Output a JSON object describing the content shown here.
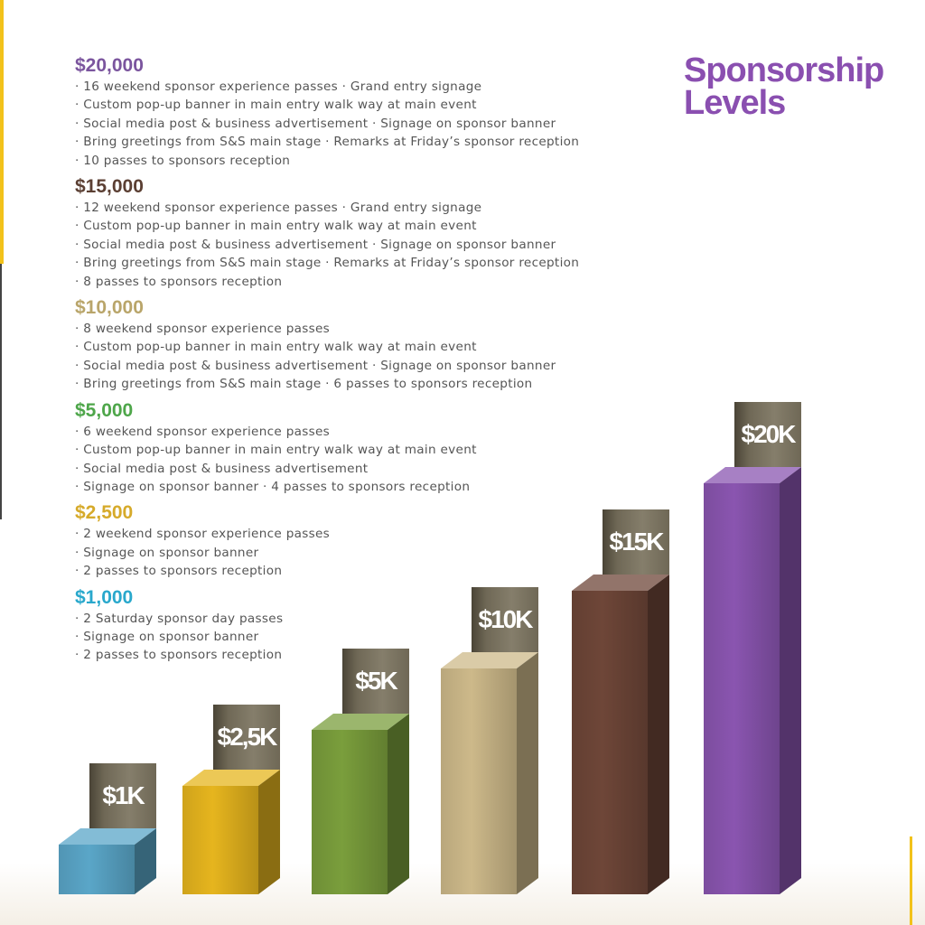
{
  "title": [
    "Sponsorship",
    "Levels"
  ],
  "levels": [
    {
      "amount": "$20,000",
      "color": "#7b559e",
      "items": [
        "16 weekend sponsor experience passes · Grand entry signage",
        "Custom pop-up banner in main entry walk way at main event",
        "Social media post & business advertisement · Signage on sponsor banner",
        "Bring greetings from S&S main stage · Remarks at Friday’s sponsor reception",
        "10 passes to sponsors reception"
      ]
    },
    {
      "amount": "$15,000",
      "color": "#5b3f33",
      "items": [
        "12 weekend sponsor experience passes · Grand entry signage",
        "Custom pop-up banner in main entry walk way at main event",
        "Social media post & business advertisement · Signage on sponsor banner",
        "Bring greetings from S&S main stage · Remarks at Friday’s sponsor reception",
        "8 passes to sponsors reception"
      ]
    },
    {
      "amount": "$10,000",
      "color": "#b9a56a",
      "items": [
        "8 weekend sponsor experience passes",
        "Custom pop-up banner in main entry walk way at main event",
        "Social media post & business advertisement · Signage on sponsor banner",
        "Bring greetings from S&S main stage · 6 passes to sponsors reception"
      ]
    },
    {
      "amount": "$5,000",
      "color": "#4ea64a",
      "items": [
        "6 weekend sponsor experience passes",
        "Custom pop-up banner in main entry walk way at main event",
        "Social media post & business advertisement",
        "Signage on sponsor banner · 4 passes to sponsors reception"
      ]
    },
    {
      "amount": "$2,500",
      "color": "#d6aa2a",
      "items": [
        "2 weekend sponsor experience passes",
        "Signage on sponsor banner",
        "2 passes to sponsors reception"
      ]
    },
    {
      "amount": "$1,000",
      "color": "#29a8cc",
      "items": [
        "2 Saturday sponsor day passes",
        "Signage on sponsor banner",
        "2 passes to sponsors reception"
      ]
    }
  ],
  "bars": [
    {
      "label": "$1K",
      "color": "#5aa6c8"
    },
    {
      "label": "$2,5K",
      "color": "#e6b51e"
    },
    {
      "label": "$5K",
      "color": "#7a9e3c"
    },
    {
      "label": "$10K",
      "color": "#cdb98a"
    },
    {
      "label": "$15K",
      "color": "#6e4638"
    },
    {
      "label": "$20K",
      "color": "#8a55b0"
    }
  ]
}
